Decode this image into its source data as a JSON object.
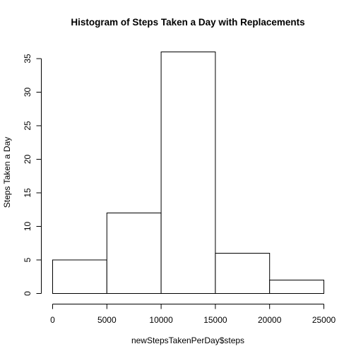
{
  "chart_data": {
    "type": "bar",
    "title": "Histogram of Steps Taken a Day with Replacements",
    "xlabel": "newStepsTakenPerDay$steps",
    "ylabel": "Steps Taken a Day",
    "bins": [
      {
        "from": 0,
        "to": 5000,
        "count": 5
      },
      {
        "from": 5000,
        "to": 10000,
        "count": 12
      },
      {
        "from": 10000,
        "to": 15000,
        "count": 36
      },
      {
        "from": 15000,
        "to": 20000,
        "count": 6
      },
      {
        "from": 20000,
        "to": 25000,
        "count": 2
      }
    ],
    "xlim": [
      0,
      25000
    ],
    "ylim": [
      0,
      36
    ],
    "x_ticks": [
      0,
      5000,
      10000,
      15000,
      20000,
      25000
    ],
    "y_ticks": [
      0,
      5,
      10,
      15,
      20,
      25,
      30,
      35
    ],
    "grid": false,
    "colors": {
      "bar_fill": "#ffffff",
      "bar_stroke": "#000000"
    }
  }
}
